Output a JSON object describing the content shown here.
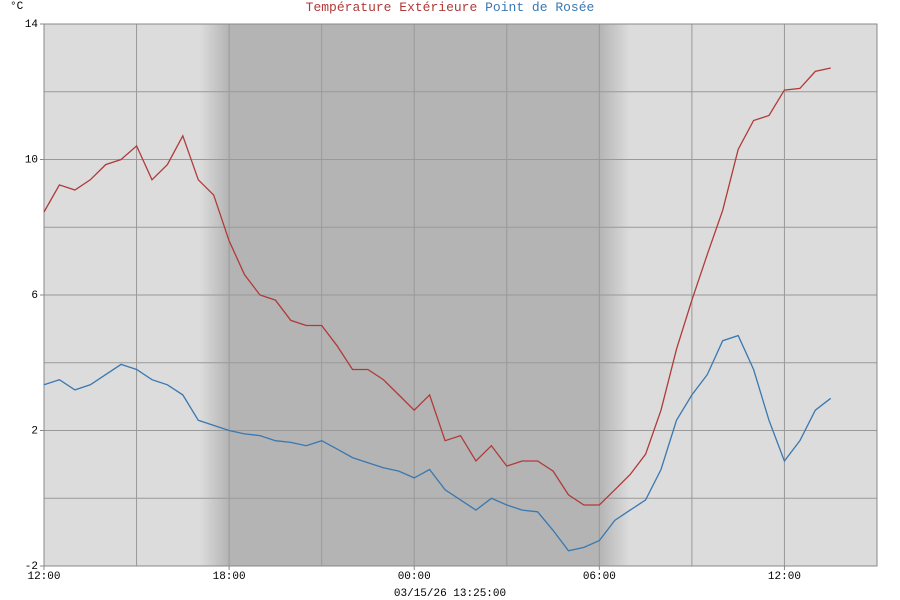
{
  "chart_data": {
    "type": "line",
    "title_parts": [
      "Température Extérieure",
      "Point de Rosée"
    ],
    "y_unit": "°C",
    "subtitle": "03/15/26 13:25:00",
    "x": [
      0,
      0.5,
      1,
      1.5,
      2,
      2.5,
      3,
      3.5,
      4,
      4.5,
      5,
      5.5,
      6,
      6.5,
      7,
      7.5,
      8,
      8.5,
      9,
      9.5,
      10,
      10.5,
      11,
      11.5,
      12,
      12.5,
      13,
      13.5,
      14,
      14.5,
      15,
      15.5,
      16,
      16.5,
      17,
      17.5,
      18,
      18.5,
      19,
      19.5,
      20,
      20.5,
      21,
      21.5,
      22,
      22.5,
      23,
      23.5,
      24,
      24.5,
      25,
      25.5
    ],
    "series": [
      {
        "name": "Température Extérieure",
        "color": "#b03a3a",
        "values": [
          8.45,
          9.25,
          9.1,
          9.4,
          9.85,
          10.0,
          10.4,
          9.4,
          9.85,
          10.7,
          9.4,
          8.95,
          7.6,
          6.6,
          6.0,
          5.85,
          5.25,
          5.1,
          5.1,
          4.5,
          3.8,
          3.8,
          3.5,
          3.05,
          2.6,
          3.05,
          1.7,
          1.85,
          1.1,
          1.55,
          0.95,
          1.1,
          1.1,
          0.8,
          0.1,
          -0.2,
          -0.2,
          0.25,
          0.7,
          1.3,
          2.6,
          4.4,
          5.85,
          7.2,
          8.5,
          10.3,
          11.15,
          11.3,
          12.05,
          12.1,
          12.6,
          12.7
        ]
      },
      {
        "name": "Point de Rosée",
        "color": "#3a78b0",
        "values": [
          3.35,
          3.5,
          3.2,
          3.35,
          3.65,
          3.95,
          3.8,
          3.5,
          3.35,
          3.05,
          2.3,
          2.15,
          2.0,
          1.9,
          1.85,
          1.7,
          1.65,
          1.55,
          1.7,
          1.45,
          1.2,
          1.05,
          0.9,
          0.8,
          0.6,
          0.85,
          0.25,
          -0.05,
          -0.35,
          0.0,
          -0.2,
          -0.35,
          -0.4,
          -0.95,
          -1.55,
          -1.45,
          -1.25,
          -0.65,
          -0.35,
          -0.05,
          0.85,
          2.3,
          3.05,
          3.65,
          4.65,
          4.8,
          3.8,
          2.3,
          1.1,
          1.7,
          2.6,
          2.95
        ]
      }
    ],
    "xlim": [
      0,
      27
    ],
    "xticks": [
      {
        "value": 0,
        "label": "12:00"
      },
      {
        "value": 6,
        "label": "18:00"
      },
      {
        "value": 12,
        "label": "00:00"
      },
      {
        "value": 18,
        "label": "06:00"
      },
      {
        "value": 24,
        "label": "12:00"
      }
    ],
    "xgrid": [
      3,
      6,
      9,
      12,
      15,
      18,
      21,
      24
    ],
    "ylim": [
      -2,
      14
    ],
    "yticks": [
      -2,
      2,
      6,
      10,
      14
    ],
    "ygrid": [
      0,
      2,
      4,
      6,
      8,
      10,
      12
    ],
    "grid": true
  }
}
